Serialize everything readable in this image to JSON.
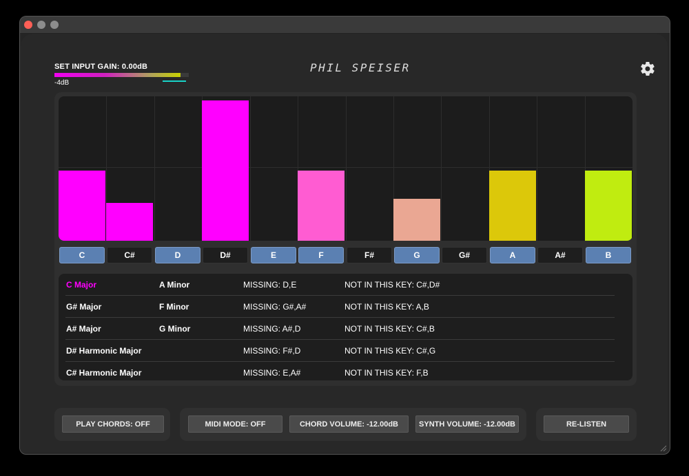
{
  "gain": {
    "label": "SET INPUT GAIN: 0.00dB",
    "min_label": "-4dB"
  },
  "logo": "PHIL SPEISER",
  "settings_icon": "gear-icon",
  "chart_data": {
    "type": "bar",
    "categories": [
      "C",
      "C#",
      "D",
      "D#",
      "E",
      "F",
      "F#",
      "G",
      "G#",
      "A",
      "A#",
      "B"
    ],
    "values": [
      0.5,
      0.27,
      0,
      1.0,
      0,
      0.5,
      0,
      0.3,
      0,
      0.5,
      0,
      0.5
    ],
    "colors": [
      "#ff00ff",
      "#ff00ff",
      "#ff00ff",
      "#ff00ff",
      "#ff44dd",
      "#ff5cd2",
      "#f26fc5",
      "#eaa793",
      "#e0c060",
      "#dcc80a",
      "#d0d800",
      "#c0ec10"
    ],
    "ylim": [
      0,
      1
    ]
  },
  "keys": [
    {
      "label": "C",
      "active": true
    },
    {
      "label": "C#",
      "active": false
    },
    {
      "label": "D",
      "active": true
    },
    {
      "label": "D#",
      "active": false
    },
    {
      "label": "E",
      "active": true
    },
    {
      "label": "F",
      "active": true
    },
    {
      "label": "F#",
      "active": false
    },
    {
      "label": "G",
      "active": true
    },
    {
      "label": "G#",
      "active": false
    },
    {
      "label": "A",
      "active": true
    },
    {
      "label": "A#",
      "active": false
    },
    {
      "label": "B",
      "active": true
    }
  ],
  "results": [
    {
      "key": "C Major",
      "relative": "A Minor",
      "missing": "MISSING: D,E",
      "not_in_key": "NOT IN THIS KEY: C#,D#",
      "highlight": true
    },
    {
      "key": "G# Major",
      "relative": "F Minor",
      "missing": "MISSING: G#,A#",
      "not_in_key": "NOT IN THIS KEY: A,B",
      "highlight": false
    },
    {
      "key": "A# Major",
      "relative": "G Minor",
      "missing": "MISSING: A#,D",
      "not_in_key": "NOT IN THIS KEY: C#,B",
      "highlight": false
    },
    {
      "key": "D# Harmonic Major",
      "relative": "",
      "missing": "MISSING: F#,D",
      "not_in_key": "NOT IN THIS KEY: C#,G",
      "highlight": false
    },
    {
      "key": "C# Harmonic Major",
      "relative": "",
      "missing": "MISSING: E,A#",
      "not_in_key": "NOT IN THIS KEY: F,B",
      "highlight": false
    }
  ],
  "footer": {
    "play_chords": "PLAY CHORDS: OFF",
    "midi_mode": "MIDI MODE: OFF",
    "chord_volume": "CHORD VOLUME: -12.00dB",
    "synth_volume": "SYNTH VOLUME: -12.00dB",
    "relisten": "RE-LISTEN"
  },
  "colors": {
    "accent": "#ff00ff",
    "key_active": "#5b80b2",
    "gain_marker": "#19d4c9"
  }
}
